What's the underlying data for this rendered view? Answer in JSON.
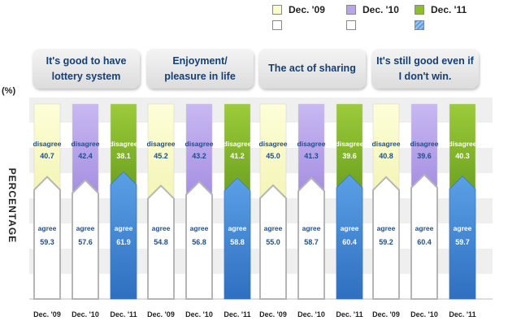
{
  "legend": {
    "items": [
      {
        "label": "Dec. '09",
        "color_top": "#fbfccb",
        "color_bottom": "#ffffff"
      },
      {
        "label": "Dec. '10",
        "color_top": "#b9a6ea",
        "color_bottom": "#ffffff"
      },
      {
        "label": "Dec. '11",
        "color_top": "#8dbf2c",
        "color_bottom": "#5b9be0"
      }
    ]
  },
  "y_unit": "(%)",
  "y_title": "PERCENTAGE",
  "colors": {
    "disagree_09": "#fbfccb",
    "disagree_10": "#b9a6ea",
    "disagree_11": "#8dbf2c",
    "agree_11": "#4f8fdb",
    "label_blue": "#1b4f91",
    "title_blue": "#143f78"
  },
  "chart_data": {
    "type": "bar",
    "stacked": true,
    "title": "",
    "xlabel": "",
    "ylabel": "PERCENTAGE",
    "ylim": [
      0,
      100
    ],
    "grid": true,
    "panels": [
      {
        "title": "It's good to have lottery system",
        "categories": [
          "Dec. '09",
          "Dec. '10",
          "Dec. '11"
        ],
        "disagree": [
          40.7,
          42.4,
          38.1
        ],
        "agree": [
          59.3,
          57.6,
          61.9
        ]
      },
      {
        "title": "Enjoyment/ pleasure in life",
        "categories": [
          "Dec. '09",
          "Dec. '10",
          "Dec. '11"
        ],
        "disagree": [
          45.2,
          43.2,
          41.2
        ],
        "agree": [
          54.8,
          56.8,
          58.8
        ]
      },
      {
        "title": "The act of sharing",
        "categories": [
          "Dec. '09",
          "Dec. '10",
          "Dec. '11"
        ],
        "disagree": [
          45.0,
          41.3,
          39.6
        ],
        "agree": [
          55.0,
          58.7,
          60.4
        ]
      },
      {
        "title": "It's still good even if I don't win.",
        "categories": [
          "Dec. '09",
          "Dec. '10",
          "Dec. '11"
        ],
        "disagree": [
          40.8,
          39.6,
          40.3
        ],
        "agree": [
          59.2,
          60.4,
          59.7
        ]
      }
    ],
    "series_labels": {
      "disagree": "disagree",
      "agree": "agree"
    }
  }
}
